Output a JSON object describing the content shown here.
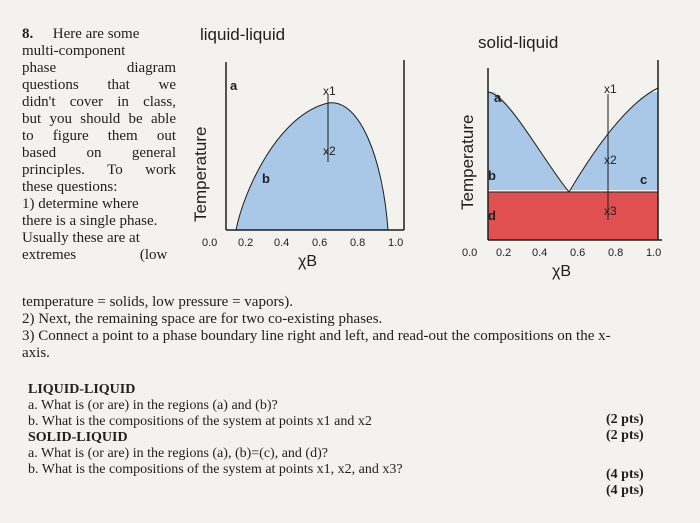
{
  "question": {
    "number": "8.",
    "intro_lines": [
      "Here are some",
      "multi-component",
      "phase diagram",
      "questions that we",
      "didn't cover in class,",
      "but you should be able",
      "to figure them out",
      "based on general",
      "principles. To work",
      "these questions:",
      "1) determine where",
      "there is a single phase.",
      "Usually these are at",
      "extremes (low"
    ],
    "continuation_lines": [
      "temperature = solids, low pressure = vapors).",
      "2) Next, the remaining space are for two co-existing phases.",
      "3) Connect a point to a phase boundary line right and left, and read-out the compositions on the x-",
      "axis."
    ]
  },
  "diagram_liquid": {
    "title": "liquid-liquid",
    "ylabel": "Temperature",
    "xlabel": "χB",
    "ticks": [
      "0.0",
      "0.2",
      "0.4",
      "0.6",
      "0.8",
      "1.0"
    ],
    "regions": {
      "a": "a",
      "b": "b"
    },
    "points": {
      "x1": "x1",
      "x2": "x2"
    }
  },
  "diagram_solid": {
    "title": "solid-liquid",
    "ylabel": "Temperature",
    "xlabel": "χB",
    "ticks": [
      "0.0",
      "0.2",
      "0.4",
      "0.6",
      "0.8",
      "1.0"
    ],
    "regions": {
      "a": "a",
      "b": "b",
      "c": "c",
      "d": "d"
    },
    "points": {
      "x1": "x1",
      "x2": "x2",
      "x3": "x3"
    }
  },
  "colors": {
    "blue": "#a9c7e6",
    "red": "#e15050"
  },
  "questions": {
    "ll_heading": "LIQUID-LIQUID",
    "ll_a": "a. What is (or are) in the regions (a) and (b)?",
    "ll_b": "b. What is the compositions of the system at points x1 and x2",
    "ll_a_pts": "(2 pts)",
    "ll_b_pts": "(2 pts)",
    "sl_heading": "SOLID-LIQUID",
    "sl_a": "a. What is (or are) in the regions (a), (b)=(c), and (d)?",
    "sl_b": "b. What is the compositions of the system at points x1, x2, and x3?",
    "sl_a_pts": "(4 pts)",
    "sl_b_pts": "(4 pts)"
  }
}
